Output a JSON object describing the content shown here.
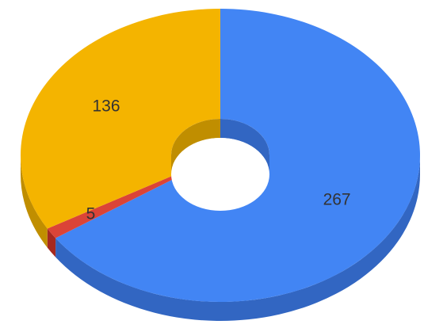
{
  "chart_data": {
    "type": "pie",
    "variant": "3d-donut",
    "slices": [
      {
        "label": "267",
        "value": 267,
        "color": "#4285f4",
        "side_color": "#3266c2"
      },
      {
        "label": "5",
        "value": 5,
        "color": "#db4437",
        "side_color": "#a6291f"
      },
      {
        "label": "136",
        "value": 136,
        "color": "#f4b400",
        "side_color": "#c08e00"
      }
    ],
    "legend": "none"
  }
}
